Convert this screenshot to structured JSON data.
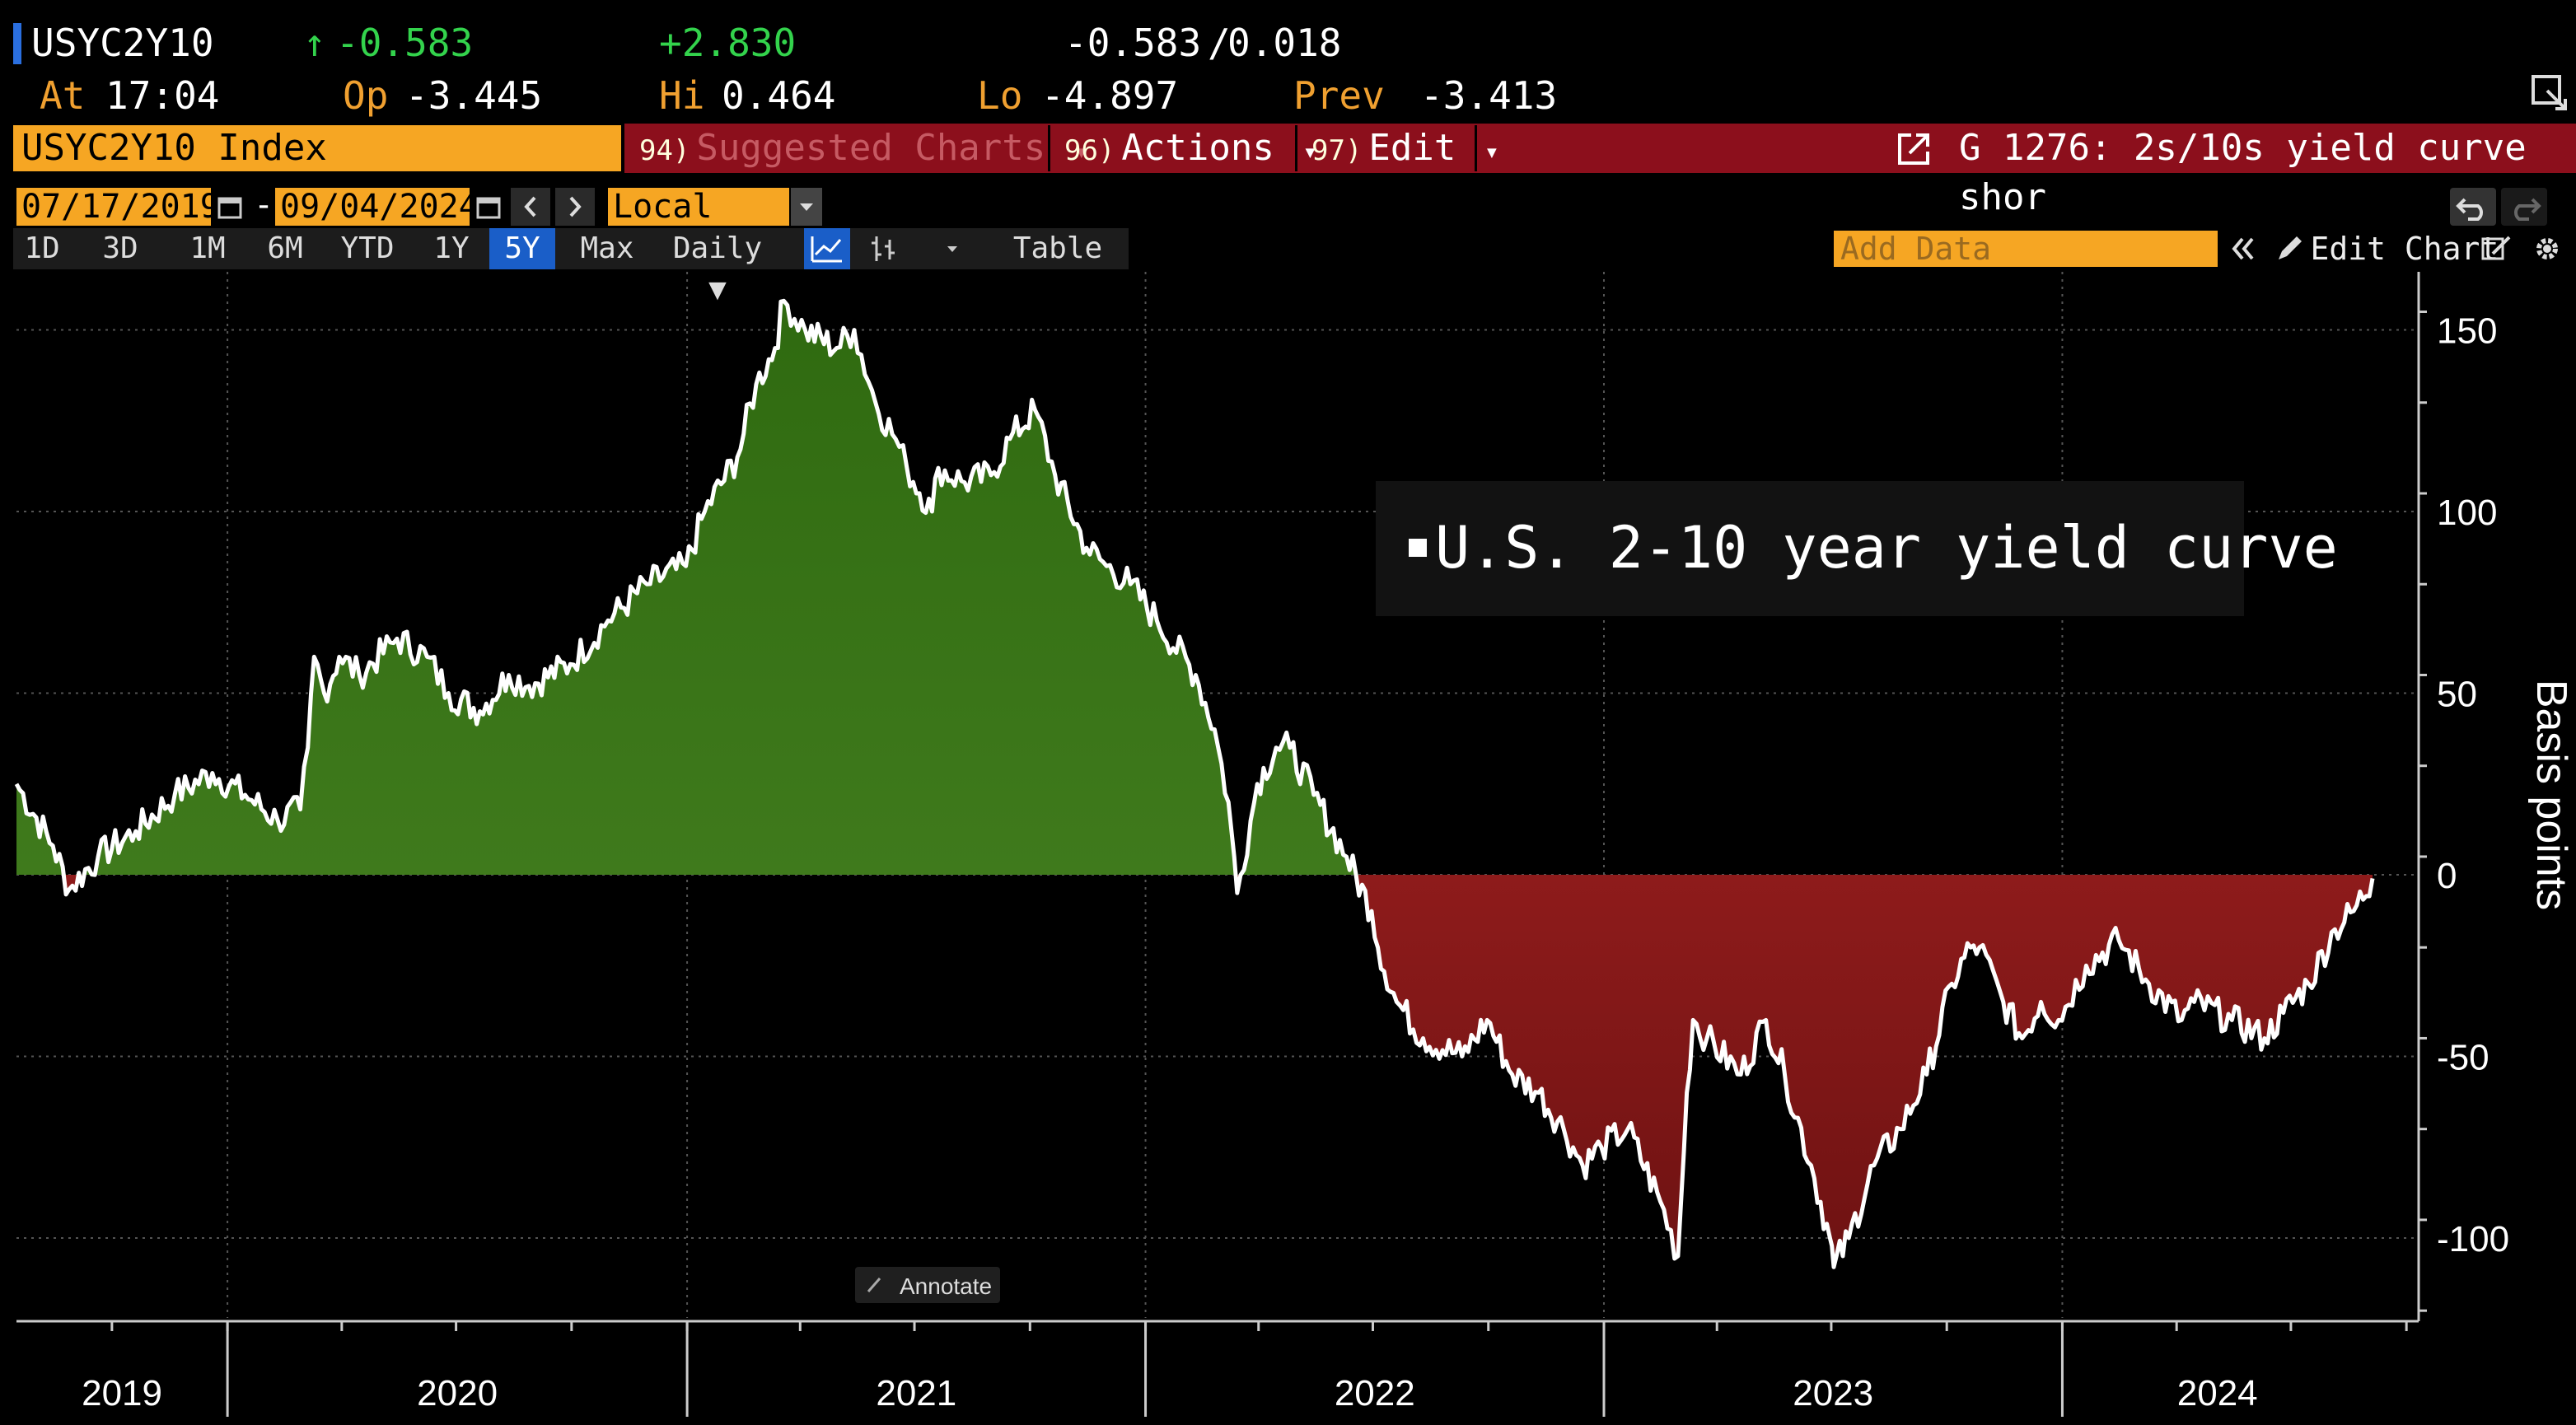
{
  "quote": {
    "ticker": "USYC2Y10",
    "arrow": "↑",
    "last": "-0.583",
    "change": "+2.830",
    "bid_ask_left": "-0.583",
    "bid_ask_sep": "/",
    "bid_ask_right": "0.018",
    "at_label": "At",
    "at_time": "17:04",
    "op_label": "Op",
    "op_value": "-3.445",
    "hi_label": "Hi",
    "hi_value": "0.464",
    "lo_label": "Lo",
    "lo_value": "-4.897",
    "prev_label": "Prev",
    "prev_value": "-3.413"
  },
  "commandbar": {
    "security": "USYC2Y10 Index",
    "suggested_num": "94)",
    "suggested_label": "Suggested Charts",
    "actions_num": "96)",
    "actions_label": "Actions",
    "edit_num": "97)",
    "edit_label": "Edit",
    "chart_title": "G 1276: 2s/10s yield curve shor",
    "dropdown_glyph": "▾"
  },
  "daterow": {
    "start": "07/17/2019",
    "dash": "-",
    "end": "09/04/2024",
    "currency": "Local CCY"
  },
  "ranges": [
    "1D",
    "3D",
    "1M",
    "6M",
    "YTD",
    "1Y",
    "5Y",
    "Max"
  ],
  "active_range": "5Y",
  "frequency": "Daily ▼",
  "table_label": "Table",
  "add_data_placeholder": "Add Data",
  "edit_chart_label": "Edit Chart",
  "annotate_label": "Annotate",
  "legend_label": "U.S. 2-10 year yield curve",
  "colors": {
    "positive_fill": "#3f7a1c",
    "negative_fill": "#8e1b1b",
    "line": "#ffffff",
    "accent": "#f6a623",
    "command_red": "#8c0f1c"
  },
  "chart_data": {
    "type": "area",
    "title": "",
    "xlabel": "",
    "ylabel": "Basis points",
    "ylim": [
      -122,
      166
    ],
    "y_ticks": [
      150,
      100,
      50,
      0,
      -50,
      -100
    ],
    "x_ticks": [
      "2019",
      "2020",
      "2021",
      "2022",
      "2023",
      "2024"
    ],
    "grid": true,
    "legend": "top-right",
    "series": [
      {
        "name": "U.S. 2-10 year yield curve",
        "x": [
          "2019-07-17",
          "2019-08-15",
          "2019-08-28",
          "2019-09-20",
          "2019-10-20",
          "2019-11-20",
          "2019-12-20",
          "2020-01-15",
          "2020-02-10",
          "2020-02-28",
          "2020-03-05",
          "2020-03-10",
          "2020-03-18",
          "2020-03-30",
          "2020-04-15",
          "2020-05-15",
          "2020-06-08",
          "2020-06-25",
          "2020-07-20",
          "2020-08-12",
          "2020-08-28",
          "2020-09-30",
          "2020-10-30",
          "2020-11-30",
          "2020-12-31",
          "2021-01-15",
          "2021-02-10",
          "2021-02-25",
          "2021-03-12",
          "2021-03-19",
          "2021-04-05",
          "2021-04-30",
          "2021-05-14",
          "2021-05-31",
          "2021-06-16",
          "2021-06-25",
          "2021-07-15",
          "2021-07-20",
          "2021-08-10",
          "2021-08-31",
          "2021-09-15",
          "2021-10-05",
          "2021-10-21",
          "2021-11-15",
          "2021-12-01",
          "2021-12-20",
          "2022-01-10",
          "2022-02-10",
          "2022-02-25",
          "2022-03-08",
          "2022-03-15",
          "2022-03-31",
          "2022-04-15",
          "2022-04-26",
          "2022-05-15",
          "2022-06-10",
          "2022-06-30",
          "2022-07-05",
          "2022-07-20",
          "2022-08-10",
          "2022-09-10",
          "2022-09-30",
          "2022-10-20",
          "2022-11-10",
          "2022-11-30",
          "2022-12-15",
          "2022-12-30",
          "2023-01-20",
          "2023-02-15",
          "2023-03-01",
          "2023-03-08",
          "2023-03-13",
          "2023-03-24",
          "2023-04-20",
          "2023-05-10",
          "2023-05-25",
          "2023-06-15",
          "2023-06-30",
          "2023-07-03",
          "2023-07-15",
          "2023-08-04",
          "2023-08-25",
          "2023-09-15",
          "2023-10-05",
          "2023-10-20",
          "2023-10-27",
          "2023-11-15",
          "2023-11-30",
          "2023-12-15",
          "2023-12-29",
          "2024-01-20",
          "2024-02-15",
          "2024-03-10",
          "2024-04-05",
          "2024-04-15",
          "2024-05-15",
          "2024-06-10",
          "2024-06-25",
          "2024-07-15",
          "2024-08-05",
          "2024-08-20",
          "2024-09-04"
        ],
        "values": [
          25,
          8,
          -4,
          5,
          12,
          22,
          28,
          22,
          15,
          18,
          35,
          60,
          50,
          60,
          55,
          65,
          60,
          50,
          45,
          55,
          52,
          58,
          70,
          80,
          85,
          100,
          115,
          135,
          145,
          158,
          150,
          145,
          150,
          130,
          120,
          112,
          100,
          112,
          108,
          110,
          120,
          128,
          110,
          90,
          85,
          80,
          70,
          55,
          40,
          20,
          -5,
          25,
          35,
          35,
          22,
          5,
          -10,
          -20,
          -35,
          -45,
          -50,
          -40,
          -55,
          -60,
          -70,
          -80,
          -75,
          -70,
          -90,
          -105,
          -60,
          -40,
          -45,
          -55,
          -40,
          -55,
          -80,
          -100,
          -108,
          -100,
          -80,
          -70,
          -55,
          -30,
          -20,
          -20,
          -35,
          -45,
          -35,
          -40,
          -25,
          -18,
          -30,
          -40,
          -35,
          -40,
          -45,
          -38,
          -30,
          -15,
          -10,
          -1
        ]
      }
    ]
  }
}
